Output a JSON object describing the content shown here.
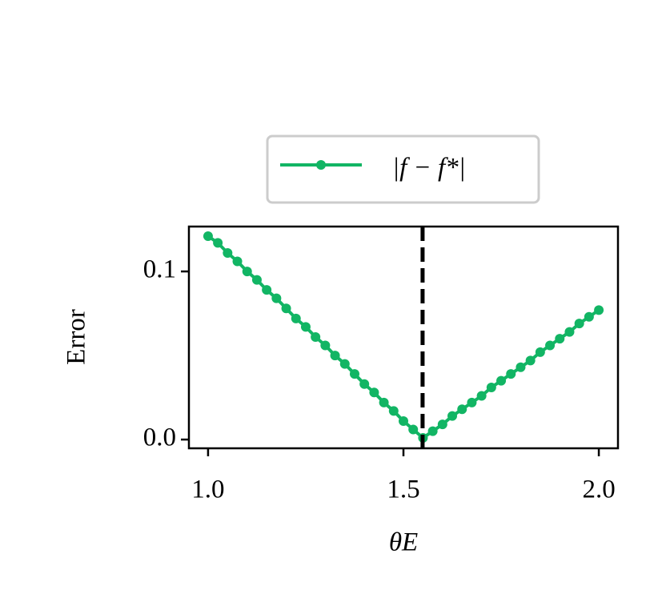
{
  "chart_data": {
    "type": "line",
    "x_label": "θE",
    "y_label": "Error",
    "x": [
      1.0,
      1.025,
      1.05,
      1.075,
      1.1,
      1.125,
      1.15,
      1.175,
      1.2,
      1.225,
      1.25,
      1.275,
      1.3,
      1.325,
      1.35,
      1.375,
      1.4,
      1.425,
      1.45,
      1.475,
      1.5,
      1.525,
      1.55,
      1.575,
      1.6,
      1.625,
      1.65,
      1.675,
      1.7,
      1.725,
      1.75,
      1.775,
      1.8,
      1.825,
      1.85,
      1.875,
      1.9,
      1.925,
      1.95,
      1.975,
      2.0
    ],
    "series": [
      {
        "name": "|f − f*|",
        "color": "#12b564",
        "values": [
          0.121,
          0.117,
          0.111,
          0.106,
          0.1,
          0.095,
          0.089,
          0.084,
          0.078,
          0.072,
          0.067,
          0.061,
          0.056,
          0.05,
          0.045,
          0.039,
          0.033,
          0.028,
          0.022,
          0.017,
          0.011,
          0.006,
          0.001,
          0.005,
          0.009,
          0.014,
          0.018,
          0.022,
          0.026,
          0.031,
          0.035,
          0.039,
          0.043,
          0.047,
          0.052,
          0.056,
          0.06,
          0.064,
          0.069,
          0.073,
          0.077
        ]
      }
    ],
    "vline": 1.549,
    "xlim": [
      0.951,
      2.049
    ],
    "ylim": [
      -0.0052,
      0.1267
    ],
    "xticks": [
      {
        "value": 1,
        "label": "1.0"
      },
      1.5,
      {
        "value": 2,
        "label": "2.0"
      }
    ],
    "yticks": [
      {
        "value": 0,
        "label": "0.0"
      },
      0.1
    ],
    "legend": "top"
  }
}
